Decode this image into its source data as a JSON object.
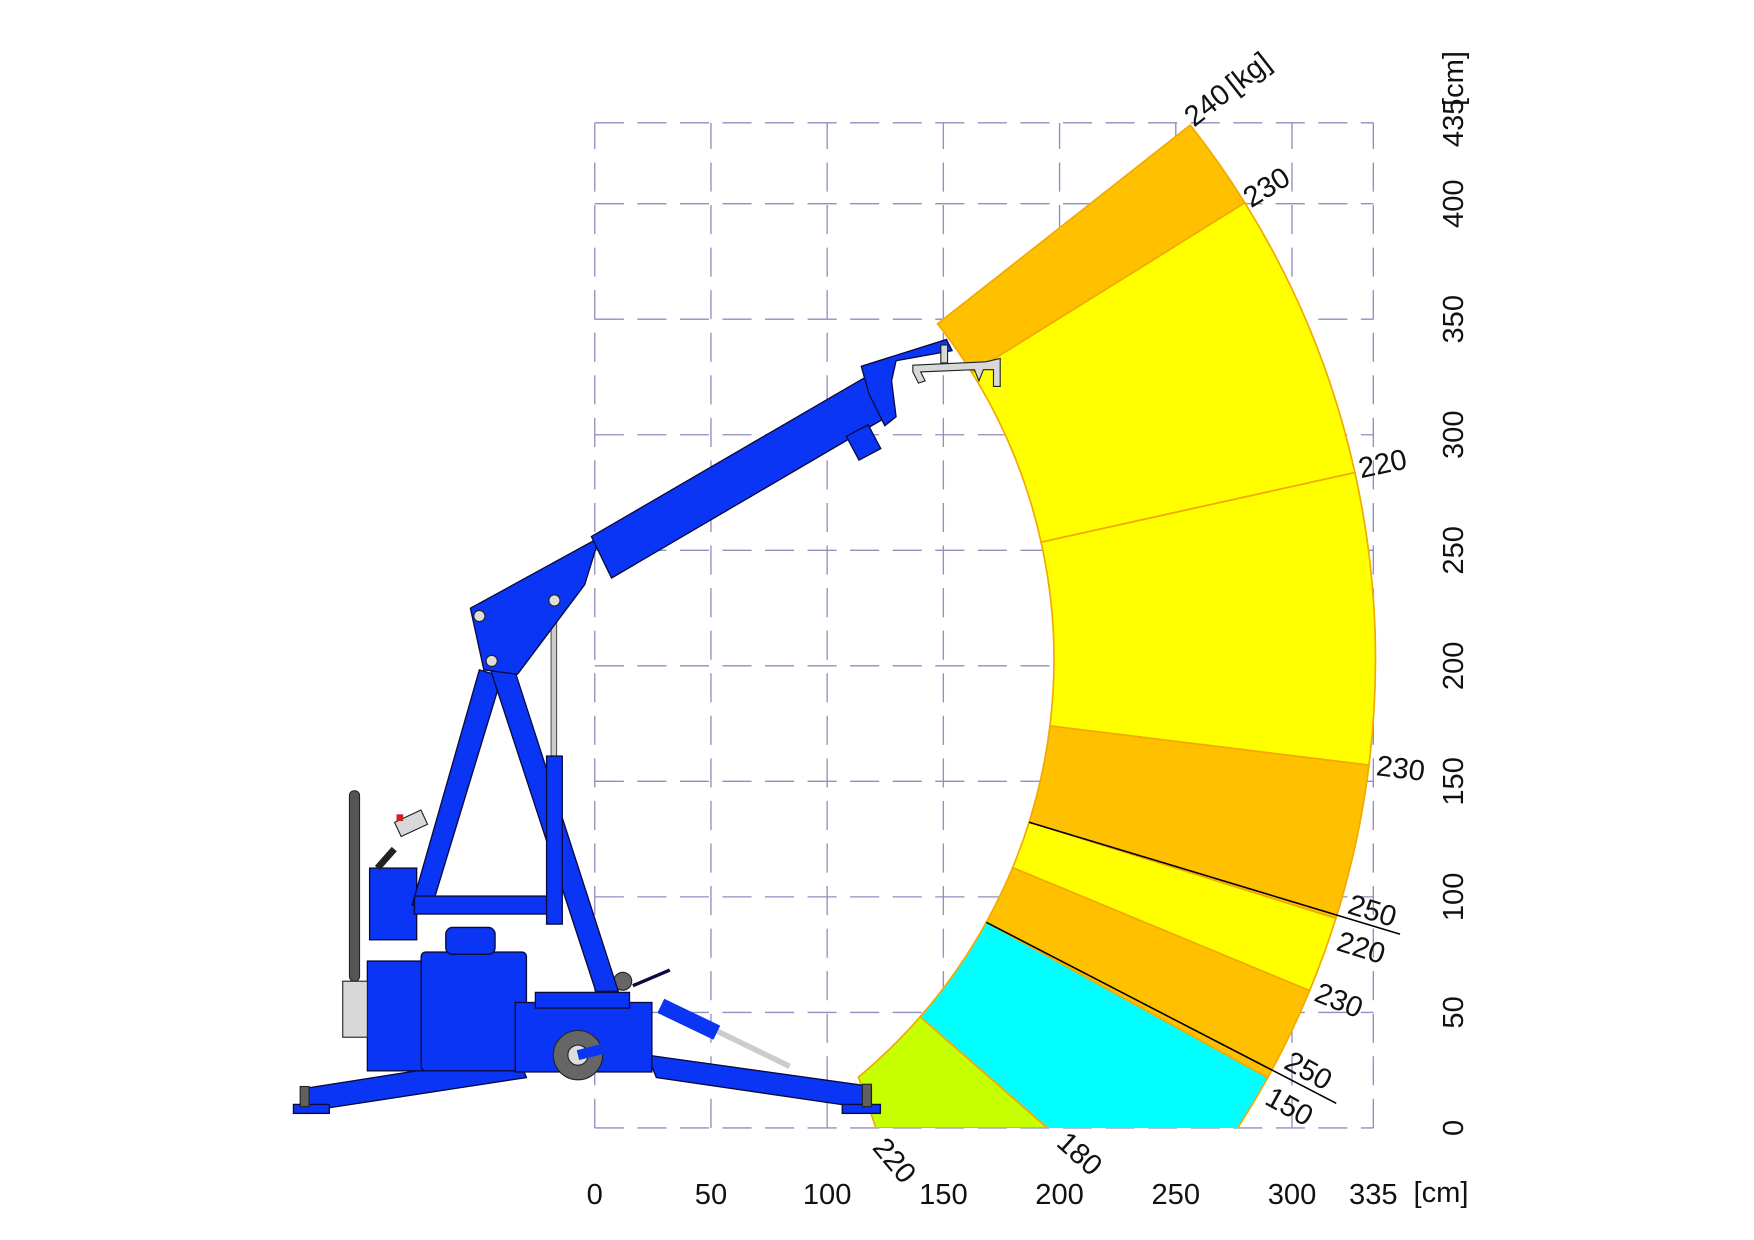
{
  "x_axis": {
    "ticks": [
      "0",
      "50",
      "100",
      "150",
      "200",
      "250",
      "300",
      "335"
    ],
    "tick_values": [
      0,
      50,
      100,
      150,
      200,
      250,
      300,
      335
    ],
    "unit": "[cm]"
  },
  "y_axis": {
    "ticks": [
      "0",
      "50",
      "100",
      "150",
      "200",
      "250",
      "300",
      "350",
      "400",
      "435"
    ],
    "tick_values": [
      0,
      50,
      100,
      150,
      200,
      250,
      300,
      350,
      400,
      435
    ],
    "unit": "[cm]"
  },
  "load_unit": "[kg]",
  "load_labels": [
    "240",
    "230",
    "220",
    "230",
    "250",
    "220",
    "230",
    "250",
    "150",
    "220",
    "180"
  ],
  "zones": [
    {
      "color": "#FFC000"
    },
    {
      "color": "#FFFF00"
    },
    {
      "color": "#FFFF00"
    },
    {
      "color": "#FFC000"
    },
    {
      "color": "#FFFF00"
    },
    {
      "color": "#FFC000"
    },
    {
      "color": "#00FFFF"
    },
    {
      "color": "#C6FF00"
    }
  ],
  "colors": {
    "crane": "#0A35F5",
    "zone_border": "#F2A900",
    "grid": "#8F8FC0"
  }
}
